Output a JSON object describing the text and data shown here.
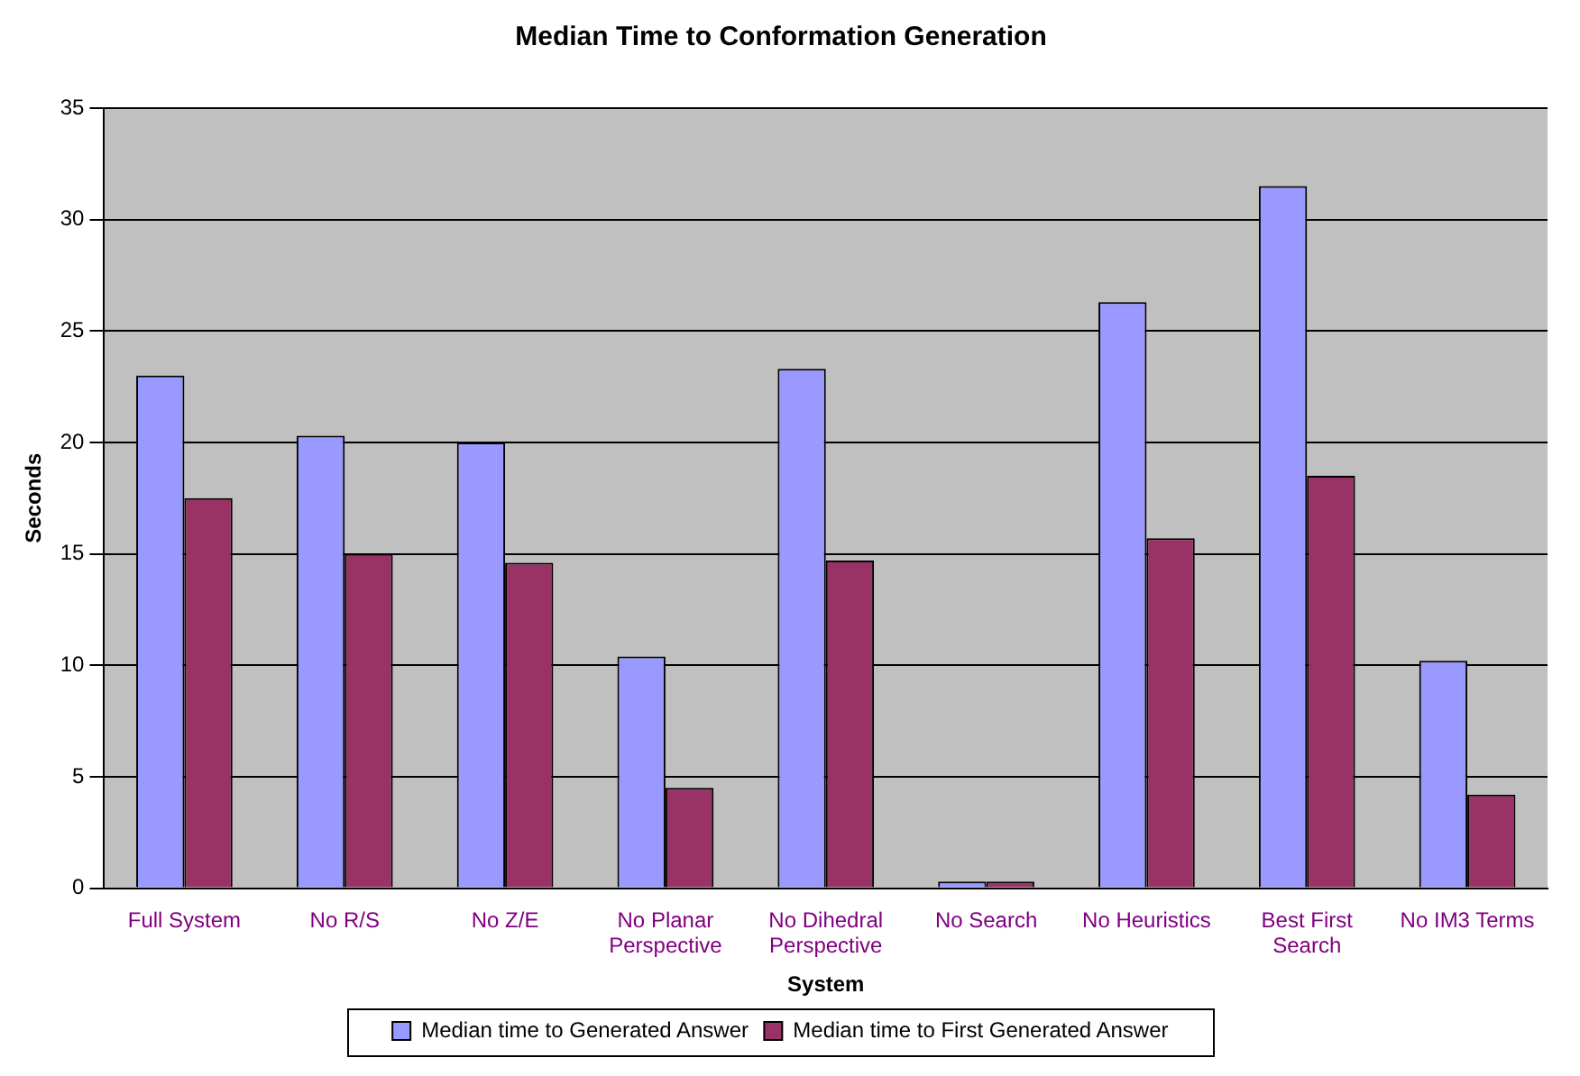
{
  "chart_data": {
    "type": "bar",
    "title": "Median Time to Conformation Generation",
    "xlabel": "System",
    "ylabel": "Seconds",
    "categories": [
      "Full System",
      "No R/S",
      "No Z/E",
      "No Planar Perspective",
      "No Dihedral Perspective",
      "No Search",
      "No Heuristics",
      "Best First Search",
      "No IM3 Terms"
    ],
    "series": [
      {
        "name": "Median time to Generated Answer",
        "color": "#9999ff",
        "values": [
          23.0,
          20.3,
          20.0,
          10.4,
          23.3,
          0.3,
          26.3,
          31.5,
          10.2
        ]
      },
      {
        "name": "Median time to First Generated Answer",
        "color": "#993366",
        "values": [
          17.5,
          15.0,
          14.6,
          4.5,
          14.7,
          0.3,
          15.7,
          18.5,
          4.2
        ]
      }
    ],
    "ylim": [
      0,
      35
    ],
    "yticks": [
      0,
      5,
      10,
      15,
      20,
      25,
      30,
      35
    ],
    "grid": "y",
    "legend": "bottom"
  }
}
